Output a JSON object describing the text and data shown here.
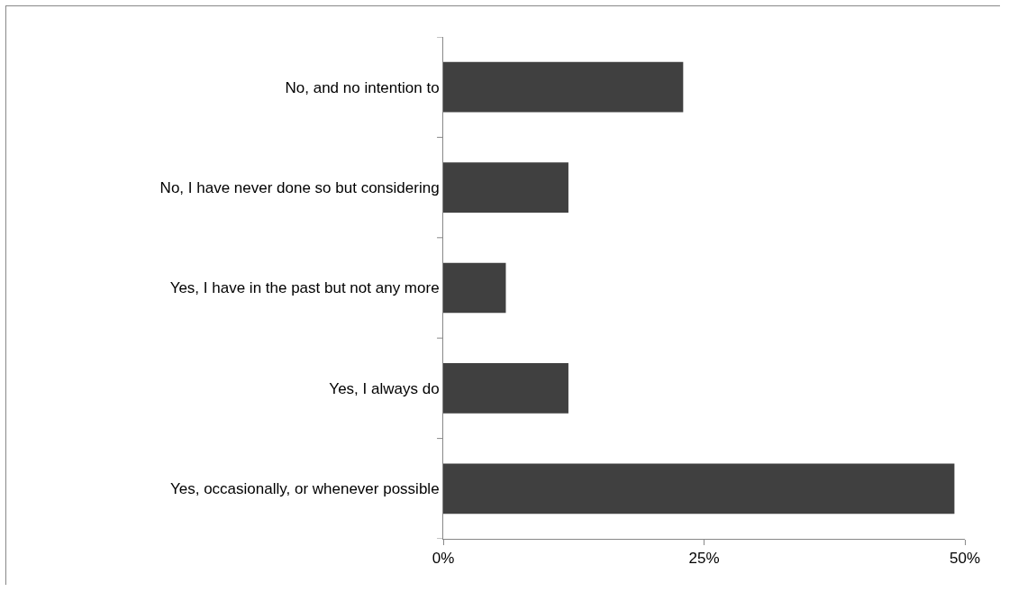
{
  "chart_data": {
    "type": "bar",
    "orientation": "horizontal",
    "categories": [
      "No, and no intention to",
      "No, I have never done so but considering",
      "Yes, I have in the past but not any more",
      "Yes, I always do",
      "Yes, occasionally, or whenever possible"
    ],
    "values": [
      23,
      12,
      6,
      12,
      49
    ],
    "color": "#404040",
    "xlim": [
      0,
      50
    ],
    "xticks": [
      {
        "value": 0,
        "label": "0%"
      },
      {
        "value": 25,
        "label": "25%"
      },
      {
        "value": 50,
        "label": "50%"
      }
    ]
  }
}
